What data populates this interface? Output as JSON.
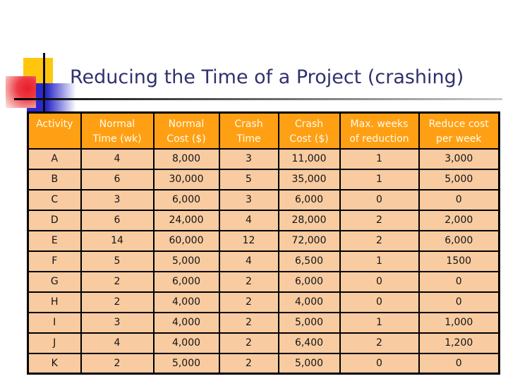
{
  "slide": {
    "title": "Reducing the Time of a Project (crashing)"
  },
  "colors": {
    "title_text": "#31316D",
    "header_bg": "#FFA014",
    "header_text": "#FFFBEC",
    "cell_bg": "#F8CBA1",
    "cell_text": "#141414",
    "table_border": "#000000",
    "accent_yellow": "#FFC60D",
    "accent_red": "#E7202B",
    "accent_blue": "#2B2BC7"
  },
  "table": {
    "columns": [
      "Activity",
      "Normal\nTime (wk)",
      "Normal\nCost ($)",
      "Crash\nTime",
      "Crash\nCost ($)",
      "Max. weeks\nof reduction",
      "Reduce cost\nper week"
    ],
    "rows": [
      {
        "cells": [
          "A",
          "4",
          "8,000",
          "3",
          "11,000",
          "1",
          "3,000"
        ]
      },
      {
        "cells": [
          "B",
          "6",
          "30,000",
          "5",
          "35,000",
          "1",
          "5,000"
        ]
      },
      {
        "cells": [
          "C",
          "3",
          "6,000",
          "3",
          "6,000",
          "0",
          "0"
        ]
      },
      {
        "cells": [
          "D",
          "6",
          "24,000",
          "4",
          "28,000",
          "2",
          "2,000"
        ]
      },
      {
        "cells": [
          "E",
          "14",
          "60,000",
          "12",
          "72,000",
          "2",
          "6,000"
        ]
      },
      {
        "cells": [
          "F",
          "5",
          "5,000",
          "4",
          "6,500",
          "1",
          "1500"
        ]
      },
      {
        "cells": [
          "G",
          "2",
          "6,000",
          "2",
          "6,000",
          "0",
          "0"
        ]
      },
      {
        "cells": [
          "H",
          "2",
          "4,000",
          "2",
          "4,000",
          "0",
          "0"
        ]
      },
      {
        "cells": [
          "I",
          "3",
          "4,000",
          "2",
          "5,000",
          "1",
          "1,000"
        ]
      },
      {
        "cells": [
          "J",
          "4",
          "4,000",
          "2",
          "6,400",
          "2",
          "1,200"
        ]
      },
      {
        "cells": [
          "K",
          "2",
          "5,000",
          "2",
          "5,000",
          "0",
          "0"
        ]
      }
    ]
  },
  "chart_data": {
    "type": "table",
    "title": "Reducing the Time of a Project (crashing)",
    "columns": [
      "Activity",
      "Normal Time (wk)",
      "Normal Cost ($)",
      "Crash Time",
      "Crash Cost ($)",
      "Max. weeks of reduction",
      "Reduce cost per week"
    ],
    "rows": [
      [
        "A",
        4,
        8000,
        3,
        11000,
        1,
        3000
      ],
      [
        "B",
        6,
        30000,
        5,
        35000,
        1,
        5000
      ],
      [
        "C",
        3,
        6000,
        3,
        6000,
        0,
        0
      ],
      [
        "D",
        6,
        24000,
        4,
        28000,
        2,
        2000
      ],
      [
        "E",
        14,
        60000,
        12,
        72000,
        2,
        6000
      ],
      [
        "F",
        5,
        5000,
        4,
        6500,
        1,
        1500
      ],
      [
        "G",
        2,
        6000,
        2,
        6000,
        0,
        0
      ],
      [
        "H",
        2,
        4000,
        2,
        4000,
        0,
        0
      ],
      [
        "I",
        3,
        4000,
        2,
        5000,
        1,
        1000
      ],
      [
        "J",
        4,
        4000,
        2,
        6400,
        2,
        1200
      ],
      [
        "K",
        2,
        5000,
        2,
        5000,
        0,
        0
      ]
    ]
  }
}
